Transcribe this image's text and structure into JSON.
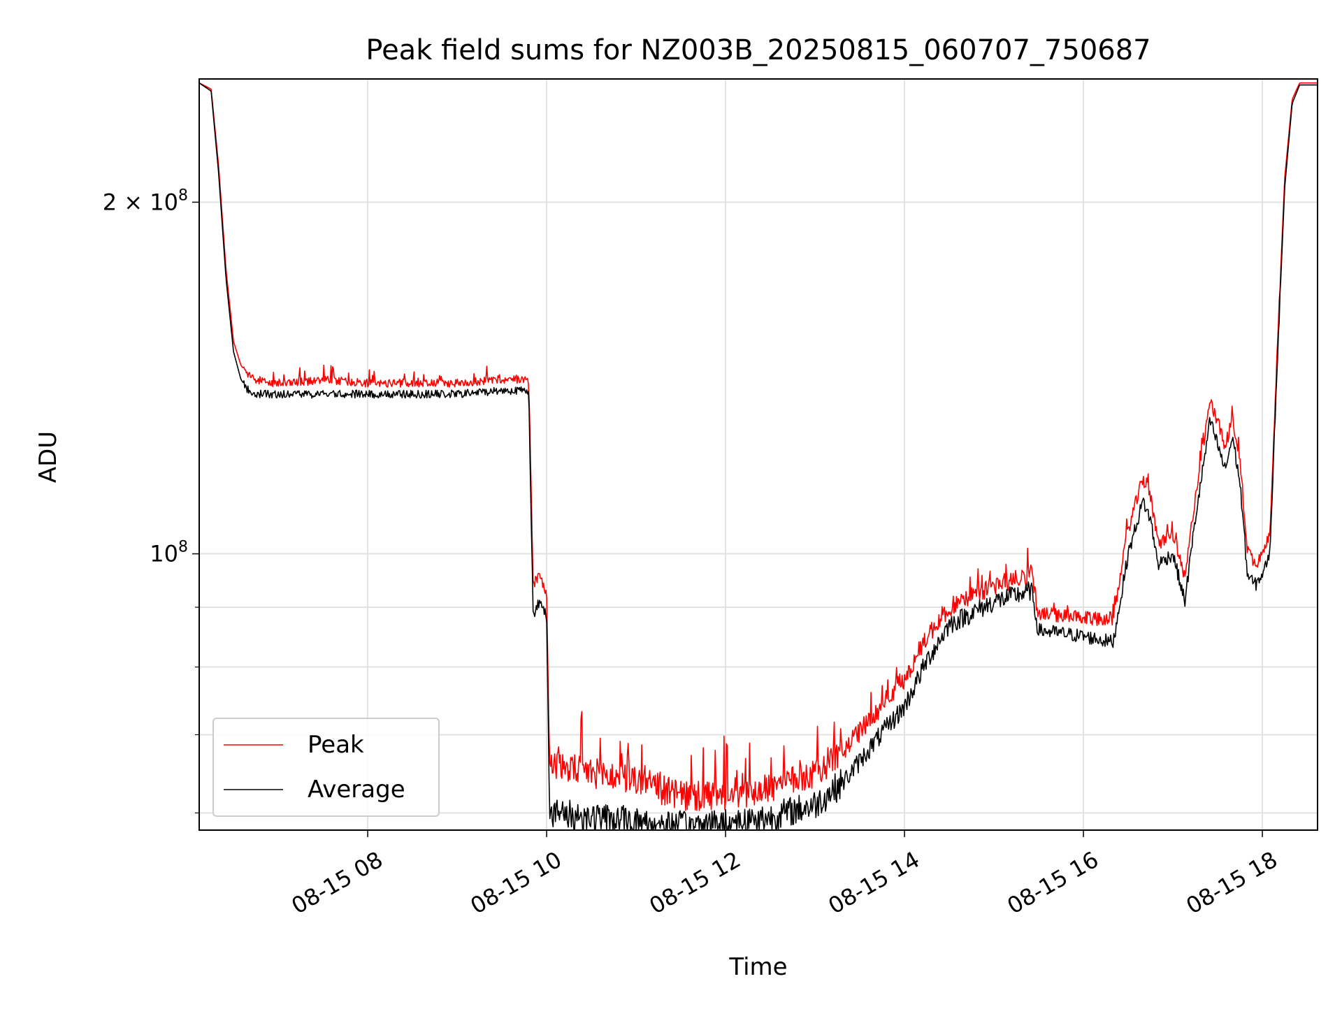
{
  "chart_data": {
    "type": "line",
    "title": "Peak field sums for NZ003B_20250815_060707_750687",
    "xlabel": "Time",
    "ylabel": "ADU",
    "yscale": "log",
    "xlim": [
      "2025-08-15 06:07",
      "2025-08-15 18:37"
    ],
    "ylim": [
      58000000,
      255000000
    ],
    "x_tick_labels": [
      {
        "t": "2025-08-15 08:00",
        "label": "08-15 08"
      },
      {
        "t": "2025-08-15 10:00",
        "label": "08-15 10"
      },
      {
        "t": "2025-08-15 12:00",
        "label": "08-15 12"
      },
      {
        "t": "2025-08-15 14:00",
        "label": "08-15 14"
      },
      {
        "t": "2025-08-15 16:00",
        "label": "08-15 16"
      },
      {
        "t": "2025-08-15 18:00",
        "label": "08-15 18"
      }
    ],
    "y_major_ticks": [
      {
        "value": 100000000,
        "label": "10",
        "exponent": "8"
      },
      {
        "value": 200000000,
        "label": "2 × 10",
        "exponent": "8"
      }
    ],
    "y_minor_ticks": [
      60000000,
      70000000,
      80000000,
      90000000
    ],
    "grid": true,
    "legend_position": "lower-left",
    "series": [
      {
        "name": "Peak",
        "color": "#ff0000",
        "x": [
          "2025-08-15 06:07",
          "2025-08-15 06:15",
          "2025-08-15 06:20",
          "2025-08-15 06:25",
          "2025-08-15 06:30",
          "2025-08-15 06:35",
          "2025-08-15 06:40",
          "2025-08-15 06:45",
          "2025-08-15 06:55",
          "2025-08-15 07:10",
          "2025-08-15 07:30",
          "2025-08-15 08:00",
          "2025-08-15 08:30",
          "2025-08-15 09:00",
          "2025-08-15 09:30",
          "2025-08-15 09:48",
          "2025-08-15 09:51",
          "2025-08-15 09:55",
          "2025-08-15 10:00",
          "2025-08-15 10:02",
          "2025-08-15 10:30",
          "2025-08-15 11:00",
          "2025-08-15 11:30",
          "2025-08-15 12:00",
          "2025-08-15 12:30",
          "2025-08-15 13:00",
          "2025-08-15 13:20",
          "2025-08-15 13:40",
          "2025-08-15 14:00",
          "2025-08-15 14:15",
          "2025-08-15 14:30",
          "2025-08-15 15:00",
          "2025-08-15 15:25",
          "2025-08-15 15:30",
          "2025-08-15 16:00",
          "2025-08-15 16:20",
          "2025-08-15 16:30",
          "2025-08-15 16:40",
          "2025-08-15 16:45",
          "2025-08-15 16:50",
          "2025-08-15 17:00",
          "2025-08-15 17:08",
          "2025-08-15 17:15",
          "2025-08-15 17:20",
          "2025-08-15 17:25",
          "2025-08-15 17:30",
          "2025-08-15 17:35",
          "2025-08-15 17:40",
          "2025-08-15 17:45",
          "2025-08-15 17:50",
          "2025-08-15 17:55",
          "2025-08-15 18:00",
          "2025-08-15 18:05",
          "2025-08-15 18:10",
          "2025-08-15 18:15",
          "2025-08-15 18:20",
          "2025-08-15 18:25",
          "2025-08-15 18:37"
        ],
        "values": [
          253000000,
          250000000,
          215000000,
          175000000,
          152000000,
          145000000,
          142000000,
          141000000,
          140000000,
          140000000,
          141000000,
          140000000,
          140000000,
          140000000,
          141000000,
          141000000,
          94000000,
          96000000,
          93000000,
          66000000,
          65000000,
          64000000,
          62000000,
          62000000,
          63000000,
          65000000,
          68000000,
          73000000,
          78000000,
          85000000,
          90000000,
          94000000,
          96000000,
          89000000,
          88000000,
          88000000,
          105000000,
          116000000,
          112000000,
          102000000,
          104000000,
          95000000,
          112000000,
          123000000,
          135000000,
          130000000,
          123000000,
          131000000,
          120000000,
          101000000,
          98000000,
          100000000,
          104000000,
          150000000,
          210000000,
          245000000,
          253000000,
          253000000
        ]
      },
      {
        "name": "Average",
        "color": "#000000",
        "x": [
          "2025-08-15 06:07",
          "2025-08-15 06:15",
          "2025-08-15 06:20",
          "2025-08-15 06:25",
          "2025-08-15 06:30",
          "2025-08-15 06:35",
          "2025-08-15 06:40",
          "2025-08-15 06:45",
          "2025-08-15 06:55",
          "2025-08-15 07:10",
          "2025-08-15 07:30",
          "2025-08-15 08:00",
          "2025-08-15 08:30",
          "2025-08-15 09:00",
          "2025-08-15 09:30",
          "2025-08-15 09:48",
          "2025-08-15 09:51",
          "2025-08-15 09:55",
          "2025-08-15 10:00",
          "2025-08-15 10:02",
          "2025-08-15 10:30",
          "2025-08-15 11:00",
          "2025-08-15 11:30",
          "2025-08-15 12:00",
          "2025-08-15 12:30",
          "2025-08-15 13:00",
          "2025-08-15 13:20",
          "2025-08-15 13:40",
          "2025-08-15 14:00",
          "2025-08-15 14:15",
          "2025-08-15 14:30",
          "2025-08-15 15:00",
          "2025-08-15 15:25",
          "2025-08-15 15:30",
          "2025-08-15 16:00",
          "2025-08-15 16:20",
          "2025-08-15 16:30",
          "2025-08-15 16:40",
          "2025-08-15 16:45",
          "2025-08-15 16:50",
          "2025-08-15 17:00",
          "2025-08-15 17:08",
          "2025-08-15 17:15",
          "2025-08-15 17:20",
          "2025-08-15 17:25",
          "2025-08-15 17:30",
          "2025-08-15 17:35",
          "2025-08-15 17:40",
          "2025-08-15 17:45",
          "2025-08-15 17:50",
          "2025-08-15 17:55",
          "2025-08-15 18:00",
          "2025-08-15 18:05",
          "2025-08-15 18:10",
          "2025-08-15 18:15",
          "2025-08-15 18:20",
          "2025-08-15 18:25",
          "2025-08-15 18:37"
        ],
        "values": [
          253000000,
          249000000,
          212000000,
          172000000,
          149000000,
          141000000,
          138000000,
          137000000,
          137000000,
          137000000,
          137000000,
          137000000,
          137000000,
          137000000,
          138000000,
          138000000,
          88000000,
          91000000,
          89000000,
          60000000,
          59500000,
          59000000,
          58500000,
          58800000,
          59500000,
          61000000,
          64000000,
          69000000,
          74000000,
          81000000,
          87000000,
          91000000,
          93000000,
          86000000,
          85000000,
          84000000,
          100000000,
          111000000,
          107000000,
          98000000,
          100000000,
          91000000,
          107000000,
          118000000,
          130000000,
          124000000,
          118000000,
          126000000,
          115000000,
          96000000,
          94000000,
          96000000,
          100000000,
          146000000,
          206000000,
          243000000,
          252000000,
          252000000
        ]
      }
    ]
  }
}
